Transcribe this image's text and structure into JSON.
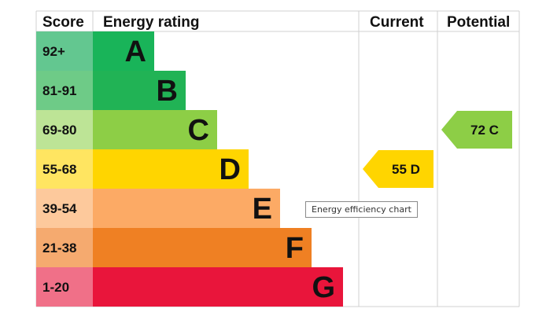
{
  "chart_data": {
    "type": "bar",
    "headers": {
      "score": "Score",
      "rating": "Energy rating",
      "current": "Current",
      "potential": "Potential"
    },
    "bands": [
      {
        "score": "92+",
        "letter": "A",
        "color": "#19b459",
        "score_bg": "#63c790"
      },
      {
        "score": "81-91",
        "letter": "B",
        "color": "#21b355",
        "score_bg": "#6ecb87"
      },
      {
        "score": "69-80",
        "letter": "C",
        "color": "#8dce46",
        "score_bg": "#bde496"
      },
      {
        "score": "55-68",
        "letter": "D",
        "color": "#ffd500",
        "score_bg": "#ffe561"
      },
      {
        "score": "39-54",
        "letter": "E",
        "color": "#fcaa65",
        "score_bg": "#fdc99c"
      },
      {
        "score": "21-38",
        "letter": "F",
        "color": "#ef8023",
        "score_bg": "#f5aa6f"
      },
      {
        "score": "1-20",
        "letter": "G",
        "color": "#e9153b",
        "score_bg": "#f07088"
      }
    ],
    "current": {
      "value": 55,
      "letter": "D",
      "label": "55 D",
      "color": "#ffd500"
    },
    "potential": {
      "value": 72,
      "letter": "C",
      "label": "72 C",
      "color": "#8dce46"
    }
  },
  "tooltip": "Energy efficiency chart"
}
